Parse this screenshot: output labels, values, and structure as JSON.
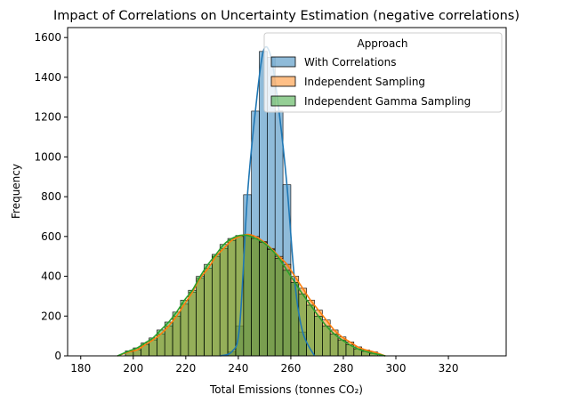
{
  "chart_data": {
    "type": "histogram",
    "title": "Impact of Correlations on Uncertainty Estimation (negative correlations)",
    "xlabel": "Total Emissions (tonnes CO₂)",
    "ylabel": "Frequency",
    "xlim": [
      175,
      342
    ],
    "ylim": [
      0,
      1650
    ],
    "x_ticks": [
      180,
      200,
      220,
      240,
      260,
      280,
      300,
      320
    ],
    "y_ticks": [
      0,
      200,
      400,
      600,
      800,
      1000,
      1200,
      1400,
      1600
    ],
    "bin_width": 3,
    "legend": {
      "title": "Approach",
      "position": "top-right"
    },
    "series": [
      {
        "name": "With Correlations",
        "color": "#1f77b4",
        "kde": true,
        "bins_start": 236,
        "counts": [
          20,
          150,
          810,
          1230,
          1530,
          1500,
          1230,
          860,
          370,
          120
        ]
      },
      {
        "name": "Independent Sampling",
        "color": "#ff7f0e",
        "kde": true,
        "bins_start": 197,
        "counts": [
          20,
          30,
          55,
          80,
          110,
          150,
          200,
          260,
          320,
          390,
          440,
          500,
          540,
          580,
          600,
          610,
          600,
          575,
          540,
          500,
          460,
          400,
          340,
          280,
          230,
          180,
          130,
          95,
          70,
          45,
          30,
          20
        ]
      },
      {
        "name": "Independent Gamma Sampling",
        "color": "#2ca02c",
        "kde": true,
        "bins_start": 197,
        "counts": [
          25,
          40,
          65,
          90,
          130,
          170,
          220,
          280,
          330,
          400,
          460,
          510,
          560,
          590,
          605,
          605,
          590,
          570,
          535,
          490,
          430,
          370,
          310,
          255,
          200,
          150,
          110,
          80,
          55,
          35,
          22,
          12
        ]
      }
    ]
  }
}
